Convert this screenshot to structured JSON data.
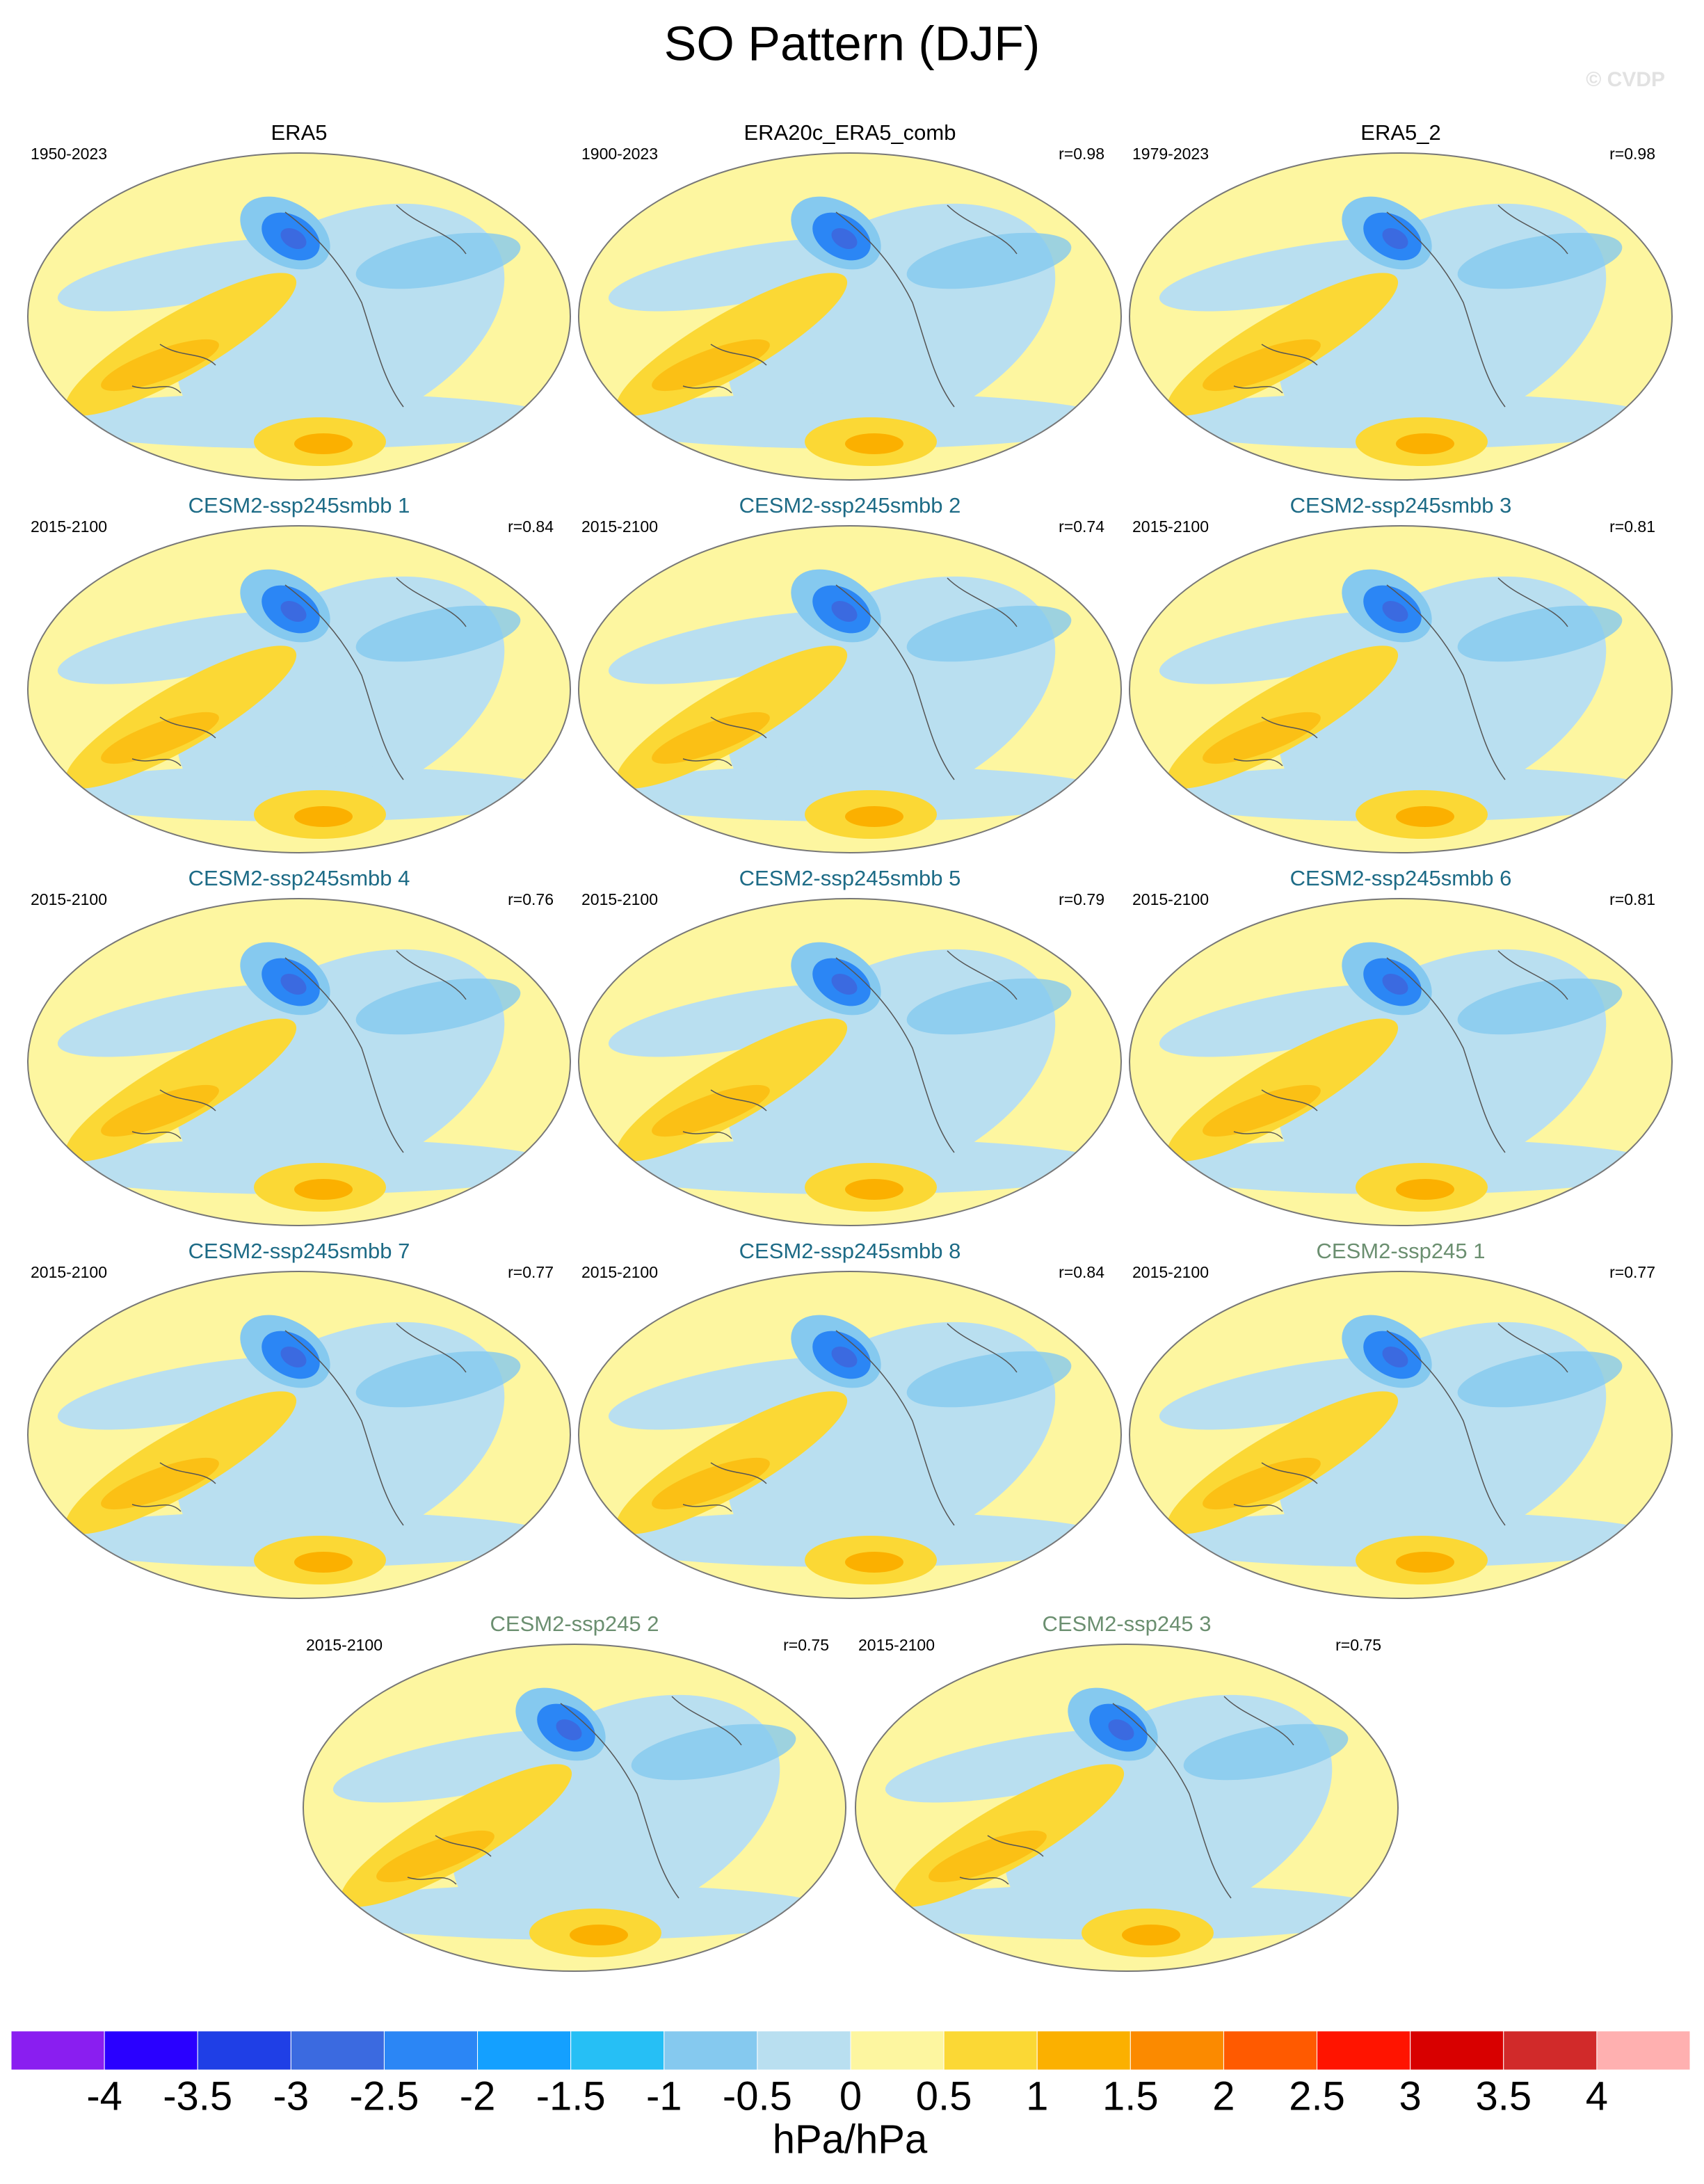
{
  "title": "SO Pattern (DJF)",
  "watermark": "© CVDP",
  "panels": [
    {
      "title": "ERA5",
      "title_color": "#000000",
      "period": "1950-2023"
    },
    {
      "title": "ERA20c_ERA5_comb",
      "title_color": "#000000",
      "period": "1900-2023",
      "r": "r=0.98"
    },
    {
      "title": "ERA5_2",
      "title_color": "#000000",
      "period": "1979-2023",
      "r": "r=0.98"
    },
    {
      "title": "CESM2-ssp245smbb 1",
      "title_color": "#1d6b86",
      "period": "2015-2100",
      "r": "r=0.84"
    },
    {
      "title": "CESM2-ssp245smbb 2",
      "title_color": "#1d6b86",
      "period": "2015-2100",
      "r": "r=0.74"
    },
    {
      "title": "CESM2-ssp245smbb 3",
      "title_color": "#1d6b86",
      "period": "2015-2100",
      "r": "r=0.81"
    },
    {
      "title": "CESM2-ssp245smbb 4",
      "title_color": "#1d6b86",
      "period": "2015-2100",
      "r": "r=0.76"
    },
    {
      "title": "CESM2-ssp245smbb 5",
      "title_color": "#1d6b86",
      "period": "2015-2100",
      "r": "r=0.79"
    },
    {
      "title": "CESM2-ssp245smbb 6",
      "title_color": "#1d6b86",
      "period": "2015-2100",
      "r": "r=0.81"
    },
    {
      "title": "CESM2-ssp245smbb 7",
      "title_color": "#1d6b86",
      "period": "2015-2100",
      "r": "r=0.77"
    },
    {
      "title": "CESM2-ssp245smbb 8",
      "title_color": "#1d6b86",
      "period": "2015-2100",
      "r": "r=0.84"
    },
    {
      "title": "CESM2-ssp245 1",
      "title_color": "#6b8f70",
      "period": "2015-2100",
      "r": "r=0.77"
    },
    {
      "title": "CESM2-ssp245 2",
      "title_color": "#6b8f70",
      "period": "2015-2100",
      "r": "r=0.75"
    },
    {
      "title": "CESM2-ssp245 3",
      "title_color": "#6b8f70",
      "period": "2015-2100",
      "r": "r=0.75"
    }
  ],
  "colorbar": {
    "levels": [
      -4,
      -3.5,
      -3,
      -2.5,
      -2,
      -1.5,
      -1,
      -0.5,
      0,
      0.5,
      1,
      1.5,
      2,
      2.5,
      3,
      3.5,
      4
    ],
    "colors": [
      "#8a1ef0",
      "#2a00ff",
      "#1f3fe6",
      "#3b6ae0",
      "#2b86f5",
      "#14a0ff",
      "#26bff5",
      "#85c9ef",
      "#b9dff0",
      "#fdf6a0",
      "#fbd835",
      "#fbb000",
      "#fb8a00",
      "#ff5a00",
      "#ff1400",
      "#d80000",
      "#d12a2a",
      "#ffb0b0"
    ],
    "label": "hPa/hPa"
  }
}
